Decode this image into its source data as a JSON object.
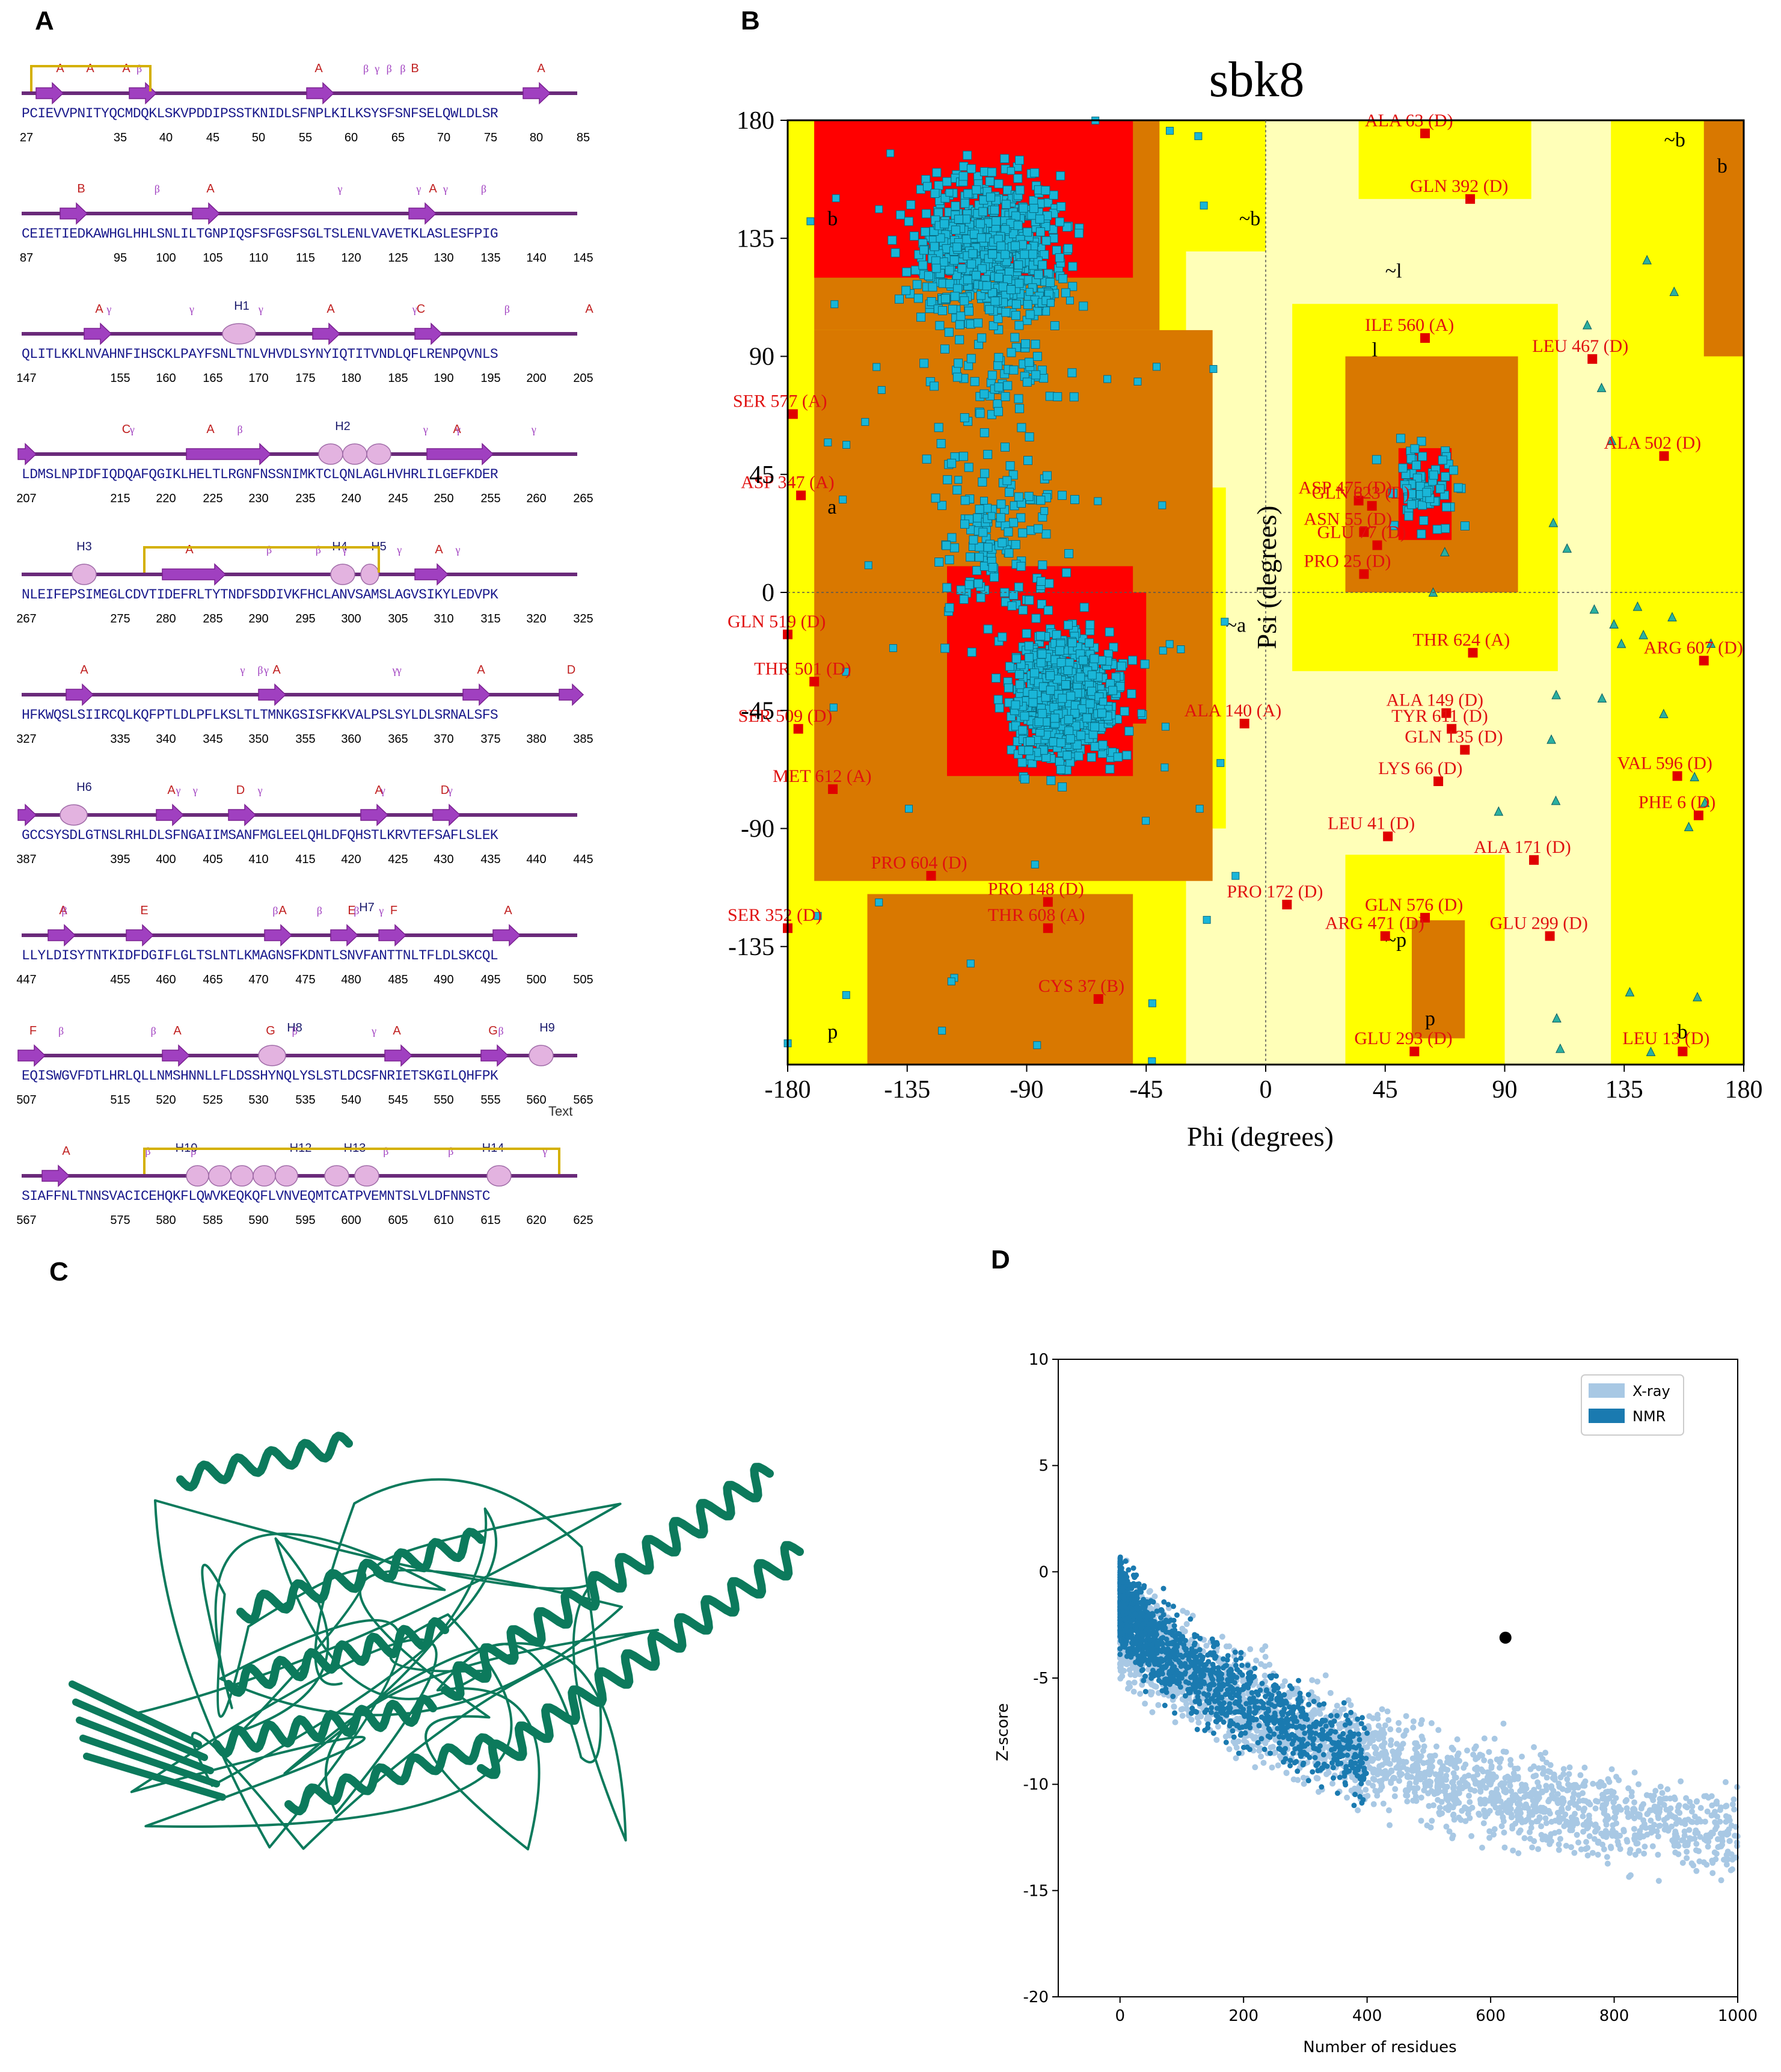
{
  "panels": {
    "a": {
      "label": "A"
    },
    "b": {
      "label": "B"
    },
    "c": {
      "label": "C"
    },
    "d": {
      "label": "D"
    }
  },
  "topology": {
    "rows": [
      {
        "sequence": "PCIEVVPNITYQCMDQKLSKVPDDIPSSTKNIDLSFNPLKILKSYSFSNFSELQWLDLSR",
        "numbers": [
          "27",
          "35",
          "40",
          "45",
          "50",
          "55",
          "60",
          "65",
          "70",
          "75",
          "80",
          "85"
        ]
      },
      {
        "sequence": "CEIETIEDKAWHGLHHLSNLILTGNPIQSFSFGSFSGLTSLENLVAVETKLASLESFPIG",
        "numbers": [
          "87",
          "95",
          "100",
          "105",
          "110",
          "115",
          "120",
          "125",
          "130",
          "135",
          "140",
          "145"
        ]
      },
      {
        "sequence": "QLITLKKLNVAHNFIHSCKLPAYFSNLTNLVHVDLSYNYIQTITVNDLQFLRENPQVNLS",
        "numbers": [
          "147",
          "155",
          "160",
          "165",
          "170",
          "175",
          "180",
          "185",
          "190",
          "195",
          "200",
          "205"
        ]
      },
      {
        "sequence": "LDMSLNPIDFIQDQAFQGIKLHELTLRGNFNSSNIMKTCLQNLAGLHVHRLILGEFKDER",
        "numbers": [
          "207",
          "215",
          "220",
          "225",
          "230",
          "235",
          "240",
          "245",
          "250",
          "255",
          "260",
          "265"
        ]
      },
      {
        "sequence": "NLEIFEPSIMEGLCDVTIDEFRLTYTNDFSDDIVKFHCLANVSAMSLAGVSIKYLEDVPK",
        "numbers": [
          "267",
          "275",
          "280",
          "285",
          "290",
          "295",
          "300",
          "305",
          "310",
          "315",
          "320",
          "325"
        ]
      },
      {
        "sequence": "HFKWQSLSIIRCQLKQFPTLDLPFLKSLTLTMNKGSISFKKVALPSLSYLDLSRNALSFS",
        "numbers": [
          "327",
          "335",
          "340",
          "345",
          "350",
          "355",
          "360",
          "365",
          "370",
          "375",
          "380",
          "385"
        ]
      },
      {
        "sequence": "GCCSYSDLGTNSLRHLDLSFNGAIIMSANFMGLEELQHLDFQHSTLKRVTEFSAFLSLEK",
        "numbers": [
          "387",
          "395",
          "400",
          "405",
          "410",
          "415",
          "420",
          "425",
          "430",
          "435",
          "440",
          "445"
        ]
      },
      {
        "sequence": "LLYLDISYTNTKIDFDGIFLGLTSLNTLKMAGNSFKDNTLSNVFANTTNLTFLDLSKCQL",
        "numbers": [
          "447",
          "455",
          "460",
          "465",
          "470",
          "475",
          "480",
          "485",
          "490",
          "495",
          "500",
          "505"
        ]
      },
      {
        "sequence": "EQISWGVFDTLHRLQLLNMSHNNLLFLDSSHYNQLYSLSTLDCSFNRIETSKGILQHFPK",
        "numbers": [
          "507",
          "515",
          "520",
          "525",
          "530",
          "535",
          "540",
          "545",
          "550",
          "555",
          "560",
          "565"
        ]
      },
      {
        "sequence": "SIAFFNLTNNSVACICEHQKFLQWVKEQKQFLVNVEQMTCATPVEMNTSLVLDFNNSTC",
        "numbers": [
          "567",
          "575",
          "580",
          "585",
          "590",
          "595",
          "600",
          "605",
          "610",
          "615",
          "620",
          "625"
        ]
      }
    ],
    "text_watermark": "Text",
    "strand_letters": [
      "A",
      "B",
      "C",
      "D",
      "E",
      "F",
      "G"
    ],
    "helix_labels": [
      "H1",
      "H2",
      "H3",
      "H4",
      "H5",
      "H6",
      "H7",
      "H8",
      "H9",
      "H10",
      "H12",
      "H13",
      "H14"
    ],
    "colors": {
      "strand": "#a040c0",
      "helix": "#e3b3e0",
      "backbone": "#6a2a7a",
      "disulfide": "#d4b000",
      "sequence": "#1a1a8c",
      "letter": "#c02020"
    }
  },
  "ramachandran": {
    "title": "sbk8",
    "xlabel": "Phi (degrees)",
    "ylabel": "Psi (degrees)",
    "xticks": [
      "-180",
      "-135",
      "-90",
      "-45",
      "0",
      "45",
      "90",
      "135",
      "180"
    ],
    "yticks": [
      "180",
      "135",
      "90",
      "45",
      "0",
      "-45",
      "-90",
      "-135"
    ],
    "region_labels": [
      "b",
      "a",
      "l",
      "p",
      "~b",
      "~a",
      "~l",
      "~p",
      "~b",
      "b",
      "p",
      "b"
    ],
    "colors": {
      "core": "#ff0000",
      "allowed": "#d97800",
      "generous": "#ffff00",
      "disallowed": "#ffffb8",
      "point": "#19b6d8",
      "outlier": "#e00000"
    },
    "outliers": [
      {
        "label": "ALA 63 (D)",
        "phi": 60,
        "psi": 175
      },
      {
        "label": "GLN 392 (D)",
        "phi": 77,
        "psi": 150
      },
      {
        "label": "LEU 467 (D)",
        "phi": 123,
        "psi": 89
      },
      {
        "label": "ILE 560 (A)",
        "phi": 60,
        "psi": 97
      },
      {
        "label": "SER 577 (A)",
        "phi": -178,
        "psi": 68
      },
      {
        "label": "ALA 502 (D)",
        "phi": 150,
        "psi": 52
      },
      {
        "label": "ASP 347 (A)",
        "phi": -175,
        "psi": 37
      },
      {
        "label": "ASP 475 (D)",
        "phi": 35,
        "psi": 35
      },
      {
        "label": "GLN 623 (D)",
        "phi": 40,
        "psi": 33
      },
      {
        "label": "ASN 55 (D)",
        "phi": 37,
        "psi": 23
      },
      {
        "label": "GLU 77 (D)",
        "phi": 42,
        "psi": 18
      },
      {
        "label": "PRO 25 (D)",
        "phi": 37,
        "psi": 7
      },
      {
        "label": "GLN 519 (D)",
        "phi": -180,
        "psi": -16
      },
      {
        "label": "THR 624 (A)",
        "phi": 78,
        "psi": -23
      },
      {
        "label": "ARG 607 (D)",
        "phi": 165,
        "psi": -26
      },
      {
        "label": "THR 501 (D)",
        "phi": -170,
        "psi": -34
      },
      {
        "label": "ALA 140 (A)",
        "phi": -8,
        "psi": -50
      },
      {
        "label": "ALA 149 (D)",
        "phi": 68,
        "psi": -46
      },
      {
        "label": "TYR 611 (D)",
        "phi": 70,
        "psi": -52
      },
      {
        "label": "GLN 135 (D)",
        "phi": 75,
        "psi": -60
      },
      {
        "label": "LYS 66 (D)",
        "phi": 65,
        "psi": -72
      },
      {
        "label": "SER 509 (D)",
        "phi": -176,
        "psi": -52
      },
      {
        "label": "VAL 596 (D)",
        "phi": 155,
        "psi": -70
      },
      {
        "label": "MET 612 (A)",
        "phi": -163,
        "psi": -75
      },
      {
        "label": "PHE 6 (D)",
        "phi": 163,
        "psi": -85
      },
      {
        "label": "LEU 41 (D)",
        "phi": 46,
        "psi": -93
      },
      {
        "label": "ALA 171 (D)",
        "phi": 101,
        "psi": -102
      },
      {
        "label": "PRO 604 (D)",
        "phi": -126,
        "psi": -108
      },
      {
        "label": "PRO 148 (D)",
        "phi": -82,
        "psi": -118
      },
      {
        "label": "PRO 172 (D)",
        "phi": 8,
        "psi": -119
      },
      {
        "label": "GLN 576 (D)",
        "phi": 60,
        "psi": -124
      },
      {
        "label": "ARG 471 (D)",
        "phi": 45,
        "psi": -131
      },
      {
        "label": "GLU 299 (D)",
        "phi": 107,
        "psi": -131
      },
      {
        "label": "THR 608 (A)",
        "phi": -82,
        "psi": -128
      },
      {
        "label": "SER 352 (D)",
        "phi": -180,
        "psi": -128
      },
      {
        "label": "CYS 37 (B)",
        "phi": -63,
        "psi": -155
      },
      {
        "label": "GLU 293 (D)",
        "phi": 56,
        "psi": -175
      },
      {
        "label": "LEU 13 (D)",
        "phi": 157,
        "psi": -175
      }
    ]
  },
  "structure": {
    "color": "#0c7a5c"
  },
  "chart_data": {
    "type": "scatter",
    "title": "",
    "xlabel": "Number of residues",
    "ylabel": "Z-score",
    "xlim": [
      -100,
      1000
    ],
    "ylim": [
      -20,
      10
    ],
    "xticks": [
      "0",
      "200",
      "400",
      "600",
      "800",
      "1000"
    ],
    "yticks": [
      "10",
      "5",
      "0",
      "-5",
      "-10",
      "-15",
      "-20"
    ],
    "legend": {
      "position": "top-right",
      "entries": [
        {
          "name": "X-ray",
          "color": "#a8c8e4"
        },
        {
          "name": "NMR",
          "color": "#1a7ab0"
        }
      ]
    },
    "series": [
      {
        "name": "X-ray",
        "trend_x": [
          0,
          100,
          200,
          300,
          400,
          500,
          600,
          700,
          800,
          900,
          1000
        ],
        "trend_y": [
          -2.5,
          -4.5,
          -6.2,
          -7.5,
          -8.6,
          -9.6,
          -10.4,
          -11.0,
          -11.6,
          -12.0,
          -12.5
        ]
      },
      {
        "name": "NMR",
        "trend_x": [
          0,
          50,
          100,
          150,
          200,
          250,
          300,
          350,
          400
        ],
        "trend_y": [
          -1.5,
          -3.0,
          -4.3,
          -5.3,
          -6.0,
          -6.8,
          -7.5,
          -8.2,
          -9.0
        ]
      }
    ],
    "highlight": {
      "x": 624,
      "y": -3.1,
      "color": "#000000"
    }
  }
}
